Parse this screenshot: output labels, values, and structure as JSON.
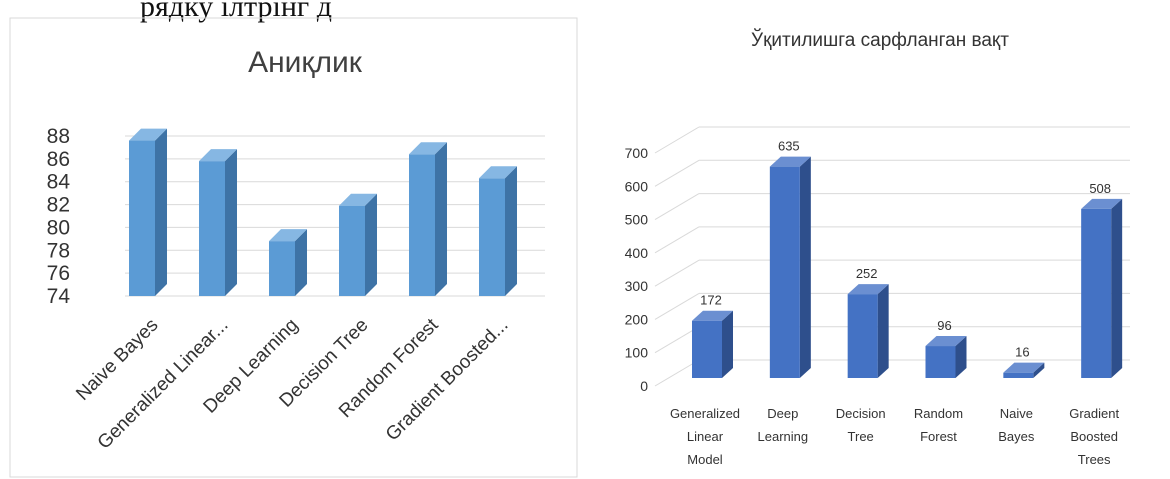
{
  "top_text": "рядку  ілтрінг  д",
  "chart_data": [
    {
      "type": "bar",
      "title": "Аниқлик",
      "categories": [
        "Naive Bayes",
        "Generalized Linear...",
        "Deep Learning",
        "Decision Tree",
        "Random Forest",
        "Gradient Boosted..."
      ],
      "values": [
        87.6,
        85.8,
        78.8,
        81.9,
        86.4,
        84.3
      ],
      "ylim": [
        74,
        88
      ],
      "yticks": [
        74,
        76,
        78,
        80,
        82,
        84,
        86,
        88
      ],
      "xlabel": "",
      "ylabel": "",
      "grid": true,
      "legend": "none",
      "bar_color": "#5b9bd5",
      "bar_side_color": "#3e73a6",
      "bar_top_color": "#86b7e3"
    },
    {
      "type": "bar",
      "title": "Ўқитилишга сарфланган вақт",
      "categories": [
        [
          "Generalized",
          "Linear",
          "Model"
        ],
        [
          "Deep",
          "Learning"
        ],
        [
          "Decision",
          "Tree"
        ],
        [
          "Random",
          "Forest"
        ],
        [
          "Naive",
          "Bayes"
        ],
        [
          "Gradient",
          "Boosted",
          "Trees"
        ]
      ],
      "values": [
        172,
        635,
        252,
        96,
        16,
        508
      ],
      "data_labels": [
        "172",
        "635",
        "252",
        "96",
        "16",
        "508"
      ],
      "ylim": [
        0,
        700
      ],
      "yticks": [
        0,
        100,
        200,
        300,
        400,
        500,
        600,
        700
      ],
      "xlabel": "",
      "ylabel": "",
      "grid": true,
      "legend": "none",
      "bar_color": "#4472c4",
      "bar_side_color": "#2e4f8c",
      "bar_top_color": "#6b8fd1"
    }
  ]
}
